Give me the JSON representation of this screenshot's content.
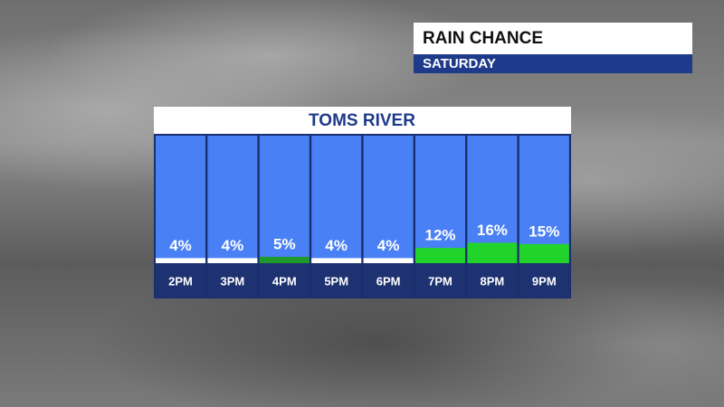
{
  "chart_data": {
    "type": "bar",
    "title": "RAIN CHANCE",
    "subtitle": "SATURDAY",
    "location": "TOMS RIVER",
    "categories": [
      "2PM",
      "3PM",
      "4PM",
      "5PM",
      "6PM",
      "7PM",
      "8PM",
      "9PM"
    ],
    "values": [
      4,
      4,
      5,
      4,
      4,
      12,
      16,
      15
    ],
    "value_labels": [
      "4%",
      "4%",
      "5%",
      "4%",
      "4%",
      "12%",
      "16%",
      "15%"
    ],
    "colors": [
      "#ffffff",
      "#ffffff",
      "#1f9a2a",
      "#ffffff",
      "#ffffff",
      "#22d42a",
      "#22d42a",
      "#22d42a"
    ],
    "ylim": [
      0,
      100
    ]
  }
}
